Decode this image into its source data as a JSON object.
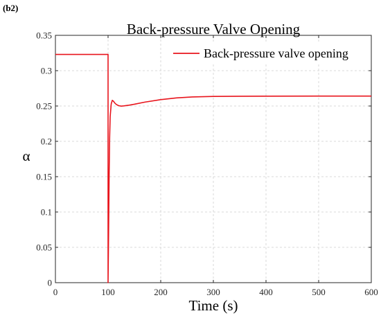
{
  "figure": {
    "panel_label": "(b2)"
  },
  "chart_data": {
    "type": "line",
    "title": "Back-pressure Valve Opening",
    "xlabel": "Time (s)",
    "ylabel": "α",
    "xlim": [
      0,
      600
    ],
    "ylim": [
      0,
      0.35
    ],
    "x_ticks": [
      0,
      100,
      200,
      300,
      400,
      500,
      600
    ],
    "x_tick_labels": [
      "0",
      "100",
      "200",
      "300",
      "400",
      "500",
      "600"
    ],
    "y_ticks": [
      0,
      0.05,
      0.1,
      0.15,
      0.2,
      0.25,
      0.3,
      0.35
    ],
    "y_tick_labels": [
      "0",
      "0.05",
      "0.1",
      "0.15",
      "0.2",
      "0.25",
      "0.3",
      "0.35"
    ],
    "grid": true,
    "legend_position": "top-right",
    "series": [
      {
        "name": "Back-pressure valve opening",
        "color": "#e8141c",
        "x": [
          0,
          100,
          100,
          101,
          102,
          103,
          104,
          106,
          108,
          110,
          113,
          116,
          120,
          125,
          130,
          140,
          150,
          170,
          200,
          230,
          260,
          300,
          350,
          400,
          500,
          600
        ],
        "y": [
          0.323,
          0.323,
          0.0,
          0.07,
          0.15,
          0.205,
          0.235,
          0.253,
          0.258,
          0.257,
          0.254,
          0.252,
          0.2505,
          0.2498,
          0.2502,
          0.2512,
          0.2525,
          0.2555,
          0.259,
          0.2615,
          0.2628,
          0.2635,
          0.2638,
          0.2639,
          0.264,
          0.264
        ]
      }
    ]
  }
}
